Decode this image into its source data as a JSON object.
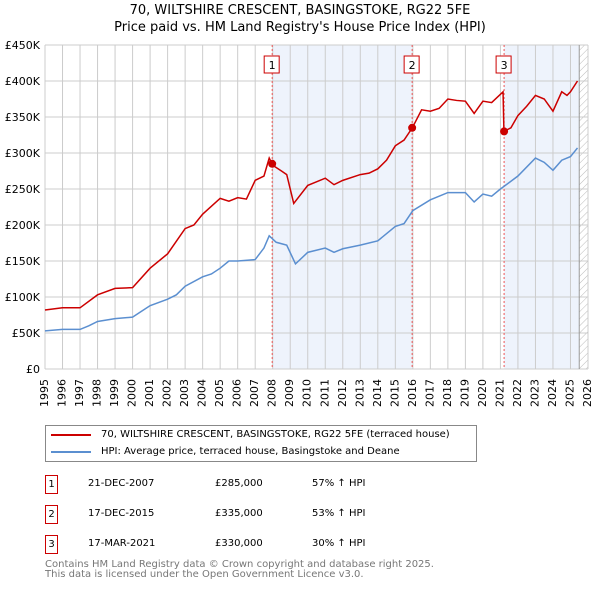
{
  "header": {
    "title": "70, WILTSHIRE CRESCENT, BASINGSTOKE, RG22 5FE",
    "subtitle": "Price paid vs. HM Land Registry's House Price Index (HPI)"
  },
  "chart_data": {
    "type": "line",
    "title": "70, WILTSHIRE CRESCENT, BASINGSTOKE, RG22 5FE",
    "subtitle": "Price paid vs. HM Land Registry's House Price Index (HPI)",
    "xlim": [
      1995,
      2026
    ],
    "ylim": [
      0,
      450000
    ],
    "x_ticks": [
      "1995",
      "1996",
      "1997",
      "1998",
      "1999",
      "2000",
      "2001",
      "2002",
      "2003",
      "2004",
      "2005",
      "2006",
      "2007",
      "2008",
      "2009",
      "2010",
      "2011",
      "2012",
      "2013",
      "2014",
      "2015",
      "2016",
      "2017",
      "2018",
      "2019",
      "2020",
      "2021",
      "2022",
      "2023",
      "2024",
      "2025",
      "2026"
    ],
    "y_ticks": [
      {
        "v": 0,
        "label": "£0"
      },
      {
        "v": 50000,
        "label": "£50K"
      },
      {
        "v": 100000,
        "label": "£100K"
      },
      {
        "v": 150000,
        "label": "£150K"
      },
      {
        "v": 200000,
        "label": "£200K"
      },
      {
        "v": 250000,
        "label": "£250K"
      },
      {
        "v": 300000,
        "label": "£300K"
      },
      {
        "v": 350000,
        "label": "£350K"
      },
      {
        "v": 400000,
        "label": "£400K"
      },
      {
        "v": 450000,
        "label": "£450K"
      }
    ],
    "grid": true,
    "series": [
      {
        "name": "70, WILTSHIRE CRESCENT, BASINGSTOKE, RG22 5FE (terraced house)",
        "color": "#cc0000",
        "points": [
          [
            1995,
            82
          ],
          [
            1996,
            85
          ],
          [
            1997,
            85
          ],
          [
            1998,
            103
          ],
          [
            1999,
            112
          ],
          [
            2000,
            113
          ],
          [
            2001,
            140
          ],
          [
            2002,
            160
          ],
          [
            2003,
            195
          ],
          [
            2003.5,
            200
          ],
          [
            2004,
            215
          ],
          [
            2005,
            237
          ],
          [
            2005.5,
            233
          ],
          [
            2006,
            238
          ],
          [
            2006.5,
            236
          ],
          [
            2007,
            262
          ],
          [
            2007.5,
            268
          ],
          [
            2007.8,
            293
          ],
          [
            2008,
            283
          ],
          [
            2008.5,
            275
          ],
          [
            2008.8,
            270
          ],
          [
            2009.2,
            230
          ],
          [
            2010,
            255
          ],
          [
            2010.5,
            260
          ],
          [
            2011,
            265
          ],
          [
            2011.5,
            256
          ],
          [
            2012,
            262
          ],
          [
            2013,
            270
          ],
          [
            2013.5,
            272
          ],
          [
            2014,
            278
          ],
          [
            2014.5,
            290
          ],
          [
            2015,
            310
          ],
          [
            2015.5,
            318
          ],
          [
            2015.97,
            335
          ],
          [
            2016.5,
            360
          ],
          [
            2017,
            358
          ],
          [
            2017.5,
            362
          ],
          [
            2018,
            375
          ],
          [
            2018.5,
            373
          ],
          [
            2019,
            372
          ],
          [
            2019.5,
            355
          ],
          [
            2020,
            372
          ],
          [
            2020.5,
            370
          ],
          [
            2021.15,
            385
          ],
          [
            2021.2,
            330
          ],
          [
            2021.6,
            335
          ],
          [
            2022,
            352
          ],
          [
            2022.5,
            365
          ],
          [
            2023,
            380
          ],
          [
            2023.5,
            375
          ],
          [
            2024,
            358
          ],
          [
            2024.5,
            385
          ],
          [
            2024.8,
            380
          ],
          [
            2025,
            385
          ],
          [
            2025.4,
            400
          ]
        ]
      },
      {
        "name": "HPI: Average price, terraced house, Basingstoke and Deane",
        "color": "#5b8fd0",
        "points": [
          [
            1995,
            53
          ],
          [
            1996,
            55
          ],
          [
            1997,
            55
          ],
          [
            1997.5,
            60
          ],
          [
            1998,
            66
          ],
          [
            1999,
            70
          ],
          [
            2000,
            72
          ],
          [
            2000.5,
            80
          ],
          [
            2001,
            88
          ],
          [
            2002,
            97
          ],
          [
            2002.5,
            103
          ],
          [
            2003,
            115
          ],
          [
            2004,
            128
          ],
          [
            2004.5,
            132
          ],
          [
            2005,
            140
          ],
          [
            2005.5,
            150
          ],
          [
            2006,
            150
          ],
          [
            2007,
            152
          ],
          [
            2007.5,
            168
          ],
          [
            2007.8,
            185
          ],
          [
            2008.2,
            176
          ],
          [
            2008.8,
            172
          ],
          [
            2009.3,
            146
          ],
          [
            2010,
            162
          ],
          [
            2011,
            168
          ],
          [
            2011.5,
            162
          ],
          [
            2012,
            167
          ],
          [
            2013,
            172
          ],
          [
            2014,
            178
          ],
          [
            2015,
            198
          ],
          [
            2015.5,
            202
          ],
          [
            2016,
            220
          ],
          [
            2017,
            235
          ],
          [
            2018,
            245
          ],
          [
            2019,
            245
          ],
          [
            2019.5,
            232
          ],
          [
            2020,
            243
          ],
          [
            2020.5,
            240
          ],
          [
            2021,
            250
          ],
          [
            2022,
            268
          ],
          [
            2023,
            293
          ],
          [
            2023.5,
            287
          ],
          [
            2024,
            276
          ],
          [
            2024.5,
            290
          ],
          [
            2025,
            295
          ],
          [
            2025.4,
            307
          ]
        ]
      }
    ],
    "sales": [
      {
        "n": "1",
        "x": 2007.97,
        "y": 285
      },
      {
        "n": "2",
        "x": 2015.96,
        "y": 335
      },
      {
        "n": "3",
        "x": 2021.21,
        "y": 330
      }
    ],
    "shaded_ranges": [
      [
        2007.97,
        2015.96
      ],
      [
        2021.21,
        2025.5
      ]
    ],
    "hatch_from": 2025.5
  },
  "legend": {
    "property": "70, WILTSHIRE CRESCENT, BASINGSTOKE, RG22 5FE (terraced house)",
    "hpi": "HPI: Average price, terraced house, Basingstoke and Deane"
  },
  "transactions": [
    {
      "n": "1",
      "date": "21-DEC-2007",
      "price": "£285,000",
      "hpi": "57% ↑ HPI"
    },
    {
      "n": "2",
      "date": "17-DEC-2015",
      "price": "£335,000",
      "hpi": "53% ↑ HPI"
    },
    {
      "n": "3",
      "date": "17-MAR-2021",
      "price": "£330,000",
      "hpi": "30% ↑ HPI"
    }
  ],
  "footer": {
    "line1": "Contains HM Land Registry data © Crown copyright and database right 2025.",
    "line2": "This data is licensed under the Open Government Licence v3.0."
  }
}
